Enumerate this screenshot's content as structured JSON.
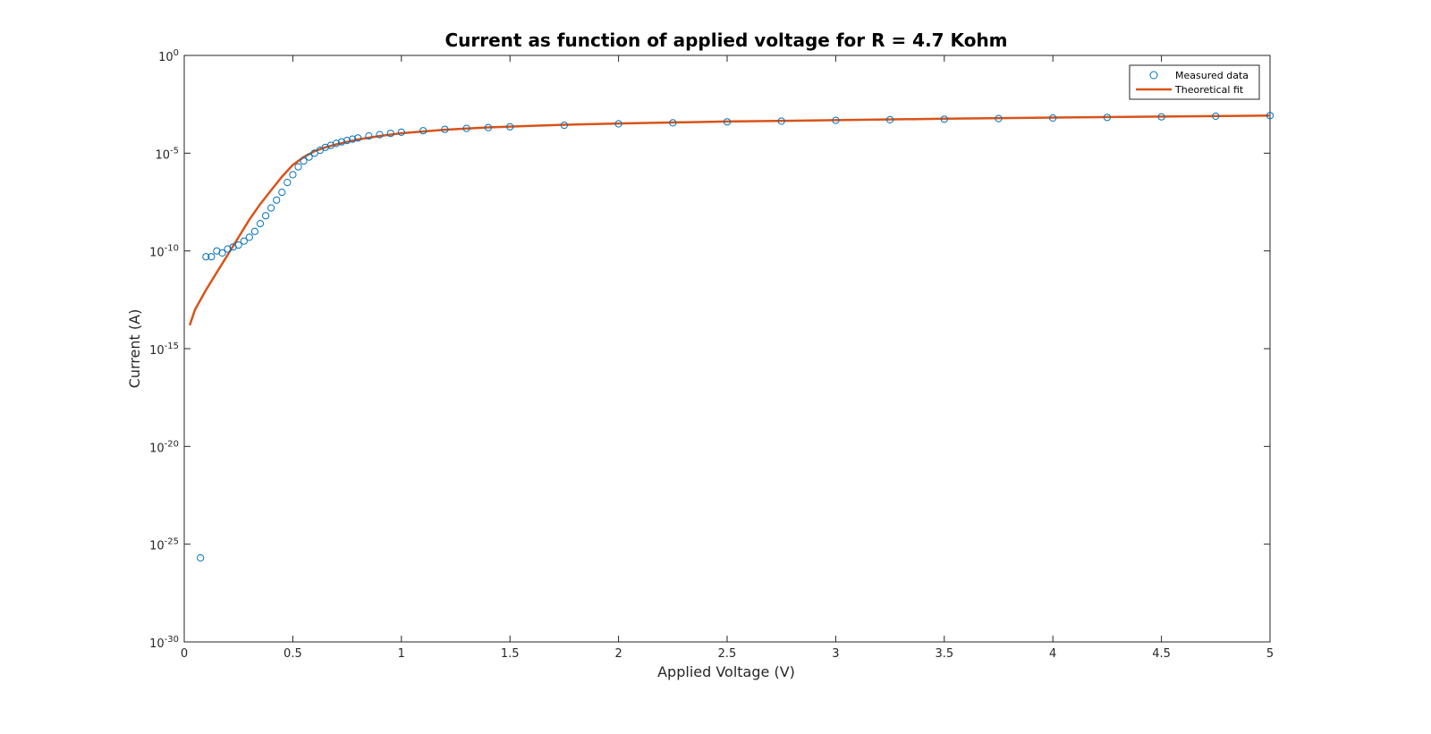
{
  "chart_data": {
    "type": "scatter",
    "title": "Current as function of applied voltage for R = 4.7 Kohm",
    "xlabel": "Applied Voltage (V)",
    "ylabel": "Current (A)",
    "xlim": [
      0,
      5
    ],
    "ylim_exponent": [
      -30,
      0
    ],
    "yscale": "log",
    "grid": false,
    "legend_position": "top-right",
    "x_ticks": [
      "0",
      "0.5",
      "1",
      "1.5",
      "2",
      "2.5",
      "3",
      "3.5",
      "4",
      "4.5",
      "5"
    ],
    "y_ticks": [
      {
        "base": "10",
        "exp": "0"
      },
      {
        "base": "10",
        "exp": "-5"
      },
      {
        "base": "10",
        "exp": "-10"
      },
      {
        "base": "10",
        "exp": "-15"
      },
      {
        "base": "10",
        "exp": "-20"
      },
      {
        "base": "10",
        "exp": "-25"
      },
      {
        "base": "10",
        "exp": "-30"
      }
    ],
    "colors": {
      "measured": "#0072BD",
      "fit": "#D95319"
    },
    "series": [
      {
        "name": "Measured data",
        "marker": "circle",
        "x": [
          0.075,
          0.1,
          0.125,
          0.15,
          0.175,
          0.2,
          0.225,
          0.25,
          0.275,
          0.3,
          0.325,
          0.35,
          0.375,
          0.4,
          0.425,
          0.45,
          0.475,
          0.5,
          0.525,
          0.55,
          0.575,
          0.6,
          0.625,
          0.65,
          0.675,
          0.7,
          0.725,
          0.75,
          0.775,
          0.8,
          0.85,
          0.9,
          0.95,
          1.0,
          1.1,
          1.2,
          1.3,
          1.4,
          1.5,
          1.75,
          2.0,
          2.25,
          2.5,
          2.75,
          3.0,
          3.25,
          3.5,
          3.75,
          4.0,
          4.25,
          4.5,
          4.75,
          5.0
        ],
        "y_log10": [
          -25.7,
          -10.3,
          -10.3,
          -10.0,
          -10.1,
          -9.9,
          -9.8,
          -9.7,
          -9.5,
          -9.3,
          -9.0,
          -8.6,
          -8.2,
          -7.8,
          -7.4,
          -7.0,
          -6.5,
          -6.1,
          -5.7,
          -5.4,
          -5.2,
          -5.0,
          -4.85,
          -4.7,
          -4.6,
          -4.5,
          -4.42,
          -4.35,
          -4.28,
          -4.22,
          -4.12,
          -4.05,
          -3.99,
          -3.93,
          -3.85,
          -3.78,
          -3.73,
          -3.69,
          -3.65,
          -3.57,
          -3.5,
          -3.45,
          -3.4,
          -3.36,
          -3.32,
          -3.29,
          -3.26,
          -3.23,
          -3.2,
          -3.17,
          -3.14,
          -3.11,
          -3.08
        ]
      },
      {
        "name": "Theoretical fit",
        "marker": "line",
        "x": [
          0.025,
          0.05,
          0.1,
          0.15,
          0.2,
          0.25,
          0.3,
          0.35,
          0.4,
          0.45,
          0.5,
          0.55,
          0.6,
          0.65,
          0.7,
          0.75,
          0.8,
          0.9,
          1.0,
          1.2,
          1.4,
          1.6,
          1.8,
          2.0,
          2.5,
          3.0,
          3.5,
          4.0,
          4.5,
          5.0
        ],
        "y_log10": [
          -13.8,
          -13.0,
          -12.0,
          -11.1,
          -10.2,
          -9.3,
          -8.4,
          -7.6,
          -6.9,
          -6.2,
          -5.6,
          -5.2,
          -4.9,
          -4.7,
          -4.55,
          -4.42,
          -4.3,
          -4.12,
          -3.98,
          -3.8,
          -3.68,
          -3.6,
          -3.53,
          -3.48,
          -3.38,
          -3.31,
          -3.24,
          -3.18,
          -3.13,
          -3.08
        ]
      }
    ]
  }
}
